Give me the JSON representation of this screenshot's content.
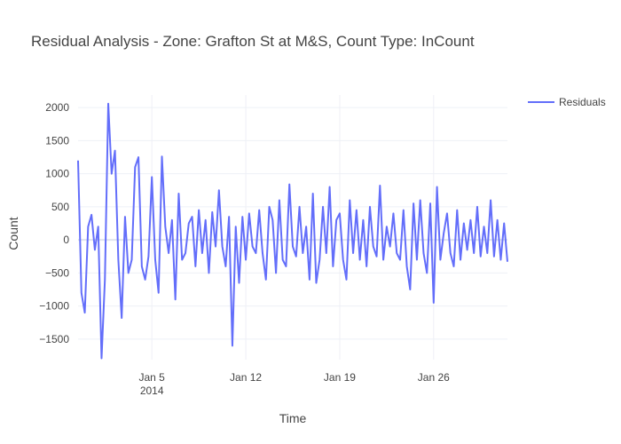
{
  "chart_data": {
    "type": "line",
    "title": "Residual Analysis - Zone: Grafton St at M&S, Count Type: InCount",
    "x_label": "Time",
    "y_label": "Count",
    "x": [
      "2013-12-30 12:00",
      "2013-12-30 18:00",
      "2013-12-31 00:00",
      "2013-12-31 06:00",
      "2013-12-31 12:00",
      "2013-12-31 18:00",
      "2014-01-01 00:00",
      "2014-01-01 06:00",
      "2014-01-01 12:00",
      "2014-01-01 18:00",
      "2014-01-02 00:00",
      "2014-01-02 06:00",
      "2014-01-02 12:00",
      "2014-01-02 18:00",
      "2014-01-03 00:00",
      "2014-01-03 06:00",
      "2014-01-03 12:00",
      "2014-01-03 18:00",
      "2014-01-04 00:00",
      "2014-01-04 06:00",
      "2014-01-04 12:00",
      "2014-01-04 18:00",
      "2014-01-05 00:00",
      "2014-01-05 06:00",
      "2014-01-05 12:00",
      "2014-01-05 18:00",
      "2014-01-06 00:00",
      "2014-01-06 06:00",
      "2014-01-06 12:00",
      "2014-01-06 18:00",
      "2014-01-07 00:00",
      "2014-01-07 06:00",
      "2014-01-07 12:00",
      "2014-01-07 18:00",
      "2014-01-08 00:00",
      "2014-01-08 06:00",
      "2014-01-08 12:00",
      "2014-01-08 18:00",
      "2014-01-09 00:00",
      "2014-01-09 06:00",
      "2014-01-09 12:00",
      "2014-01-09 18:00",
      "2014-01-10 00:00",
      "2014-01-10 06:00",
      "2014-01-10 12:00",
      "2014-01-10 18:00",
      "2014-01-11 00:00",
      "2014-01-11 06:00",
      "2014-01-11 12:00",
      "2014-01-11 18:00",
      "2014-01-12 00:00",
      "2014-01-12 06:00",
      "2014-01-12 12:00",
      "2014-01-12 18:00",
      "2014-01-13 00:00",
      "2014-01-13 06:00",
      "2014-01-13 12:00",
      "2014-01-13 18:00",
      "2014-01-14 00:00",
      "2014-01-14 06:00",
      "2014-01-14 12:00",
      "2014-01-14 18:00",
      "2014-01-15 00:00",
      "2014-01-15 06:00",
      "2014-01-15 12:00",
      "2014-01-15 18:00",
      "2014-01-16 00:00",
      "2014-01-16 06:00",
      "2014-01-16 12:00",
      "2014-01-16 18:00",
      "2014-01-17 00:00",
      "2014-01-17 06:00",
      "2014-01-17 12:00",
      "2014-01-17 18:00",
      "2014-01-18 00:00",
      "2014-01-18 06:00",
      "2014-01-18 12:00",
      "2014-01-18 18:00",
      "2014-01-19 00:00",
      "2014-01-19 06:00",
      "2014-01-19 12:00",
      "2014-01-19 18:00",
      "2014-01-20 00:00",
      "2014-01-20 06:00",
      "2014-01-20 12:00",
      "2014-01-20 18:00",
      "2014-01-21 00:00",
      "2014-01-21 06:00",
      "2014-01-21 12:00",
      "2014-01-21 18:00",
      "2014-01-22 00:00",
      "2014-01-22 06:00",
      "2014-01-22 12:00",
      "2014-01-22 18:00",
      "2014-01-23 00:00",
      "2014-01-23 06:00",
      "2014-01-23 12:00",
      "2014-01-23 18:00",
      "2014-01-24 00:00",
      "2014-01-24 06:00",
      "2014-01-24 12:00",
      "2014-01-24 18:00",
      "2014-01-25 00:00",
      "2014-01-25 06:00",
      "2014-01-25 12:00",
      "2014-01-25 18:00",
      "2014-01-26 00:00",
      "2014-01-26 06:00",
      "2014-01-26 12:00",
      "2014-01-26 18:00",
      "2014-01-27 00:00",
      "2014-01-27 06:00",
      "2014-01-27 12:00",
      "2014-01-27 18:00",
      "2014-01-28 00:00",
      "2014-01-28 06:00",
      "2014-01-28 12:00",
      "2014-01-28 18:00",
      "2014-01-29 00:00",
      "2014-01-29 06:00",
      "2014-01-29 12:00",
      "2014-01-29 18:00",
      "2014-01-30 00:00",
      "2014-01-30 06:00",
      "2014-01-30 12:00",
      "2014-01-30 18:00",
      "2014-01-31 00:00",
      "2014-01-31 06:00",
      "2014-01-31 12:00"
    ],
    "series": [
      {
        "name": "Residuals",
        "color": "#636efa",
        "values": [
          1200,
          -800,
          -1100,
          200,
          380,
          -150,
          200,
          -1790,
          -600,
          2060,
          1000,
          1350,
          -300,
          -1180,
          350,
          -500,
          -300,
          1100,
          1250,
          -400,
          -600,
          -250,
          950,
          -300,
          -800,
          1260,
          200,
          -200,
          300,
          -900,
          700,
          -300,
          -200,
          250,
          350,
          -400,
          450,
          -200,
          300,
          -500,
          420,
          -100,
          750,
          -100,
          -400,
          350,
          -1600,
          200,
          -650,
          350,
          -300,
          400,
          -100,
          -200,
          450,
          -200,
          -600,
          500,
          300,
          -500,
          600,
          -300,
          -400,
          840,
          -100,
          -250,
          500,
          -200,
          200,
          -600,
          700,
          -650,
          -300,
          500,
          -200,
          800,
          -400,
          300,
          400,
          -300,
          -600,
          600,
          -200,
          450,
          -300,
          300,
          -400,
          500,
          -100,
          -250,
          820,
          -300,
          200,
          -100,
          400,
          -200,
          -300,
          450,
          -400,
          -750,
          550,
          -300,
          600,
          -200,
          -500,
          550,
          -950,
          800,
          -300,
          100,
          400,
          -200,
          -400,
          450,
          -300,
          250,
          -150,
          300,
          -200,
          500,
          -250,
          200,
          -200,
          600,
          -250,
          300,
          -300,
          250,
          -330
        ]
      }
    ],
    "xlim": [
      "2013-12-30 12:00",
      "2014-01-31 12:00"
    ],
    "xticks": [
      {
        "value": "2014-01-05 00:00",
        "label": "Jan 5\n2014"
      },
      {
        "value": "2014-01-12 00:00",
        "label": "Jan 12"
      },
      {
        "value": "2014-01-19 00:00",
        "label": "Jan 19"
      },
      {
        "value": "2014-01-26 00:00",
        "label": "Jan 26"
      }
    ],
    "ylim": [
      -1810,
      2190
    ],
    "yticks": [
      {
        "value": -1500,
        "label": "−1500"
      },
      {
        "value": -1000,
        "label": "−1000"
      },
      {
        "value": -500,
        "label": "−500"
      },
      0,
      500,
      1000,
      1500,
      2000
    ],
    "grid": true,
    "legend": "top-right"
  }
}
